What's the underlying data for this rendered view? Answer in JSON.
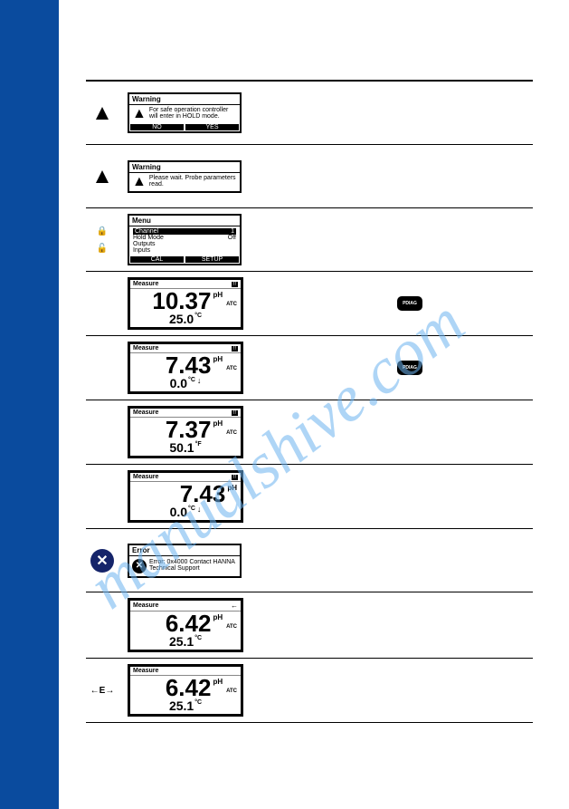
{
  "watermark_text": "manualshive.com",
  "rows": {
    "r1": {
      "title": "Warning",
      "body": "For safe operation controller will enter in HOLD mode.",
      "btn1": "NO",
      "btn2": "YES"
    },
    "r2": {
      "title": "Warning",
      "body": "Please wait. Probe parameters read."
    },
    "r3": {
      "title": "Menu",
      "item1": "Channel",
      "item1v": "1",
      "item2": "Hold Mode",
      "item2v": "Off",
      "item3": "Outputs",
      "item4": "Inputs",
      "btn1": "CAL",
      "btn2": "SETUP"
    },
    "r4": {
      "title": "Measure",
      "val": "10.37",
      "unit": "pH",
      "atc": "ATC",
      "sub": "25.0",
      "su": "°C"
    },
    "r5": {
      "title": "Measure",
      "val": "7.43",
      "unit": "pH",
      "atc": "ATC",
      "sub": "0.0",
      "su": "°C",
      "arr": "↓"
    },
    "r6": {
      "title": "Measure",
      "val": "7.37",
      "unit": "pH",
      "atc": "ATC",
      "sub": "50.1",
      "su": "°F"
    },
    "r7": {
      "title": "Measure",
      "val": "7.43",
      "unit": "pH",
      "sub": "0.0",
      "su": "°C",
      "arr": "↓"
    },
    "r8": {
      "title": "Error",
      "body": "Error: 0x4000 Contact HANNA Technical Support"
    },
    "r9": {
      "title": "Measure",
      "val": "6.42",
      "unit": "pH",
      "atc": "ATC",
      "sub": "25.1",
      "su": "°C",
      "top_arr": "←"
    },
    "r10": {
      "title": "Measure",
      "val": "6.42",
      "unit": "pH",
      "atc": "ATC",
      "sub": "25.1",
      "su": "°C",
      "side": "←E→"
    },
    "pdiag": "PDIAG"
  }
}
